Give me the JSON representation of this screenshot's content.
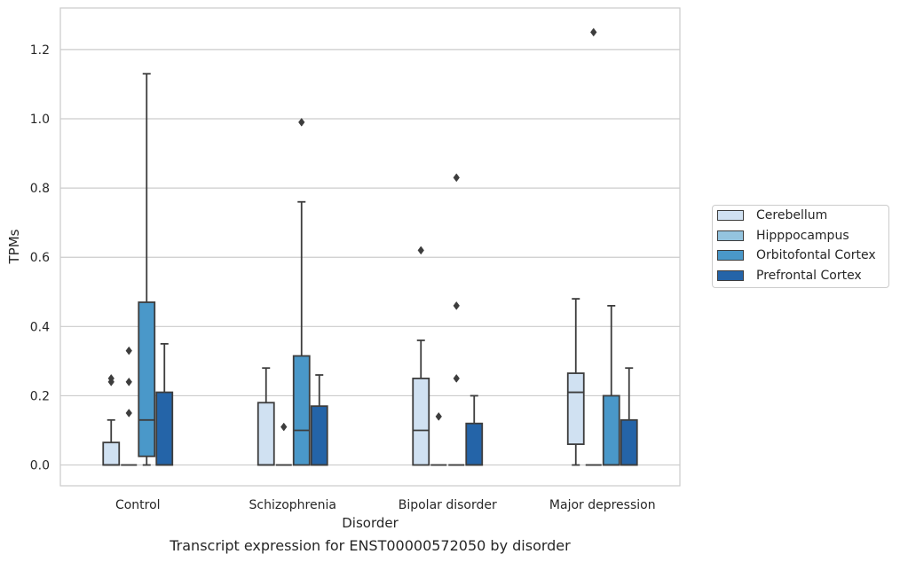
{
  "chart_data": {
    "type": "box",
    "title": "",
    "caption": "Transcript expression for ENST00000572050 by disorder",
    "xlabel": "Disorder",
    "ylabel": "TPMs",
    "ylim": [
      -0.06,
      1.32
    ],
    "yticks": [
      0.0,
      0.2,
      0.4,
      0.6,
      0.8,
      1.0,
      1.2
    ],
    "ytick_labels": [
      "0.0",
      "0.2",
      "0.4",
      "0.6",
      "0.8",
      "1.0",
      "1.2"
    ],
    "grid": "horizontal",
    "legend_position": "right",
    "categories": [
      "Control",
      "Schizophrenia",
      "Bipolar disorder",
      "Major depression"
    ],
    "series": [
      {
        "name": "Cerebellum",
        "color": "#d0e1f2",
        "boxes": [
          {
            "q1": 0.0,
            "median": 0.0,
            "q3": 0.065,
            "whisker_low": 0.0,
            "whisker_high": 0.13,
            "outliers": [
              0.24,
              0.25
            ]
          },
          {
            "q1": 0.0,
            "median": 0.0,
            "q3": 0.18,
            "whisker_low": 0.0,
            "whisker_high": 0.28,
            "outliers": []
          },
          {
            "q1": 0.0,
            "median": 0.1,
            "q3": 0.25,
            "whisker_low": 0.0,
            "whisker_high": 0.36,
            "outliers": [
              0.62
            ]
          },
          {
            "q1": 0.06,
            "median": 0.21,
            "q3": 0.265,
            "whisker_low": 0.0,
            "whisker_high": 0.48,
            "outliers": []
          }
        ]
      },
      {
        "name": "Hipppocampus",
        "color": "#94c4df",
        "boxes": [
          {
            "q1": 0.0,
            "median": 0.0,
            "q3": 0.0,
            "whisker_low": 0.0,
            "whisker_high": 0.0,
            "outliers": [
              0.15,
              0.24,
              0.33
            ]
          },
          {
            "q1": 0.0,
            "median": 0.0,
            "q3": 0.0,
            "whisker_low": 0.0,
            "whisker_high": 0.0,
            "outliers": [
              0.11
            ]
          },
          {
            "q1": 0.0,
            "median": 0.0,
            "q3": 0.0,
            "whisker_low": 0.0,
            "whisker_high": 0.0,
            "outliers": [
              0.14
            ]
          },
          {
            "q1": 0.0,
            "median": 0.0,
            "q3": 0.0,
            "whisker_low": 0.0,
            "whisker_high": 0.0,
            "outliers": [
              1.25
            ]
          }
        ]
      },
      {
        "name": "Orbitofontal Cortex",
        "color": "#4a98c9",
        "boxes": [
          {
            "q1": 0.025,
            "median": 0.13,
            "q3": 0.47,
            "whisker_low": 0.0,
            "whisker_high": 1.13,
            "outliers": []
          },
          {
            "q1": 0.0,
            "median": 0.1,
            "q3": 0.315,
            "whisker_low": 0.0,
            "whisker_high": 0.76,
            "outliers": [
              0.99
            ]
          },
          {
            "q1": 0.0,
            "median": 0.0,
            "q3": 0.0,
            "whisker_low": 0.0,
            "whisker_high": 0.0,
            "outliers": [
              0.25,
              0.46,
              0.83
            ]
          },
          {
            "q1": 0.0,
            "median": 0.0,
            "q3": 0.2,
            "whisker_low": 0.0,
            "whisker_high": 0.46,
            "outliers": []
          }
        ]
      },
      {
        "name": "Prefrontal Cortex",
        "color": "#2464a8",
        "boxes": [
          {
            "q1": 0.0,
            "median": 0.0,
            "q3": 0.21,
            "whisker_low": 0.0,
            "whisker_high": 0.35,
            "outliers": []
          },
          {
            "q1": 0.0,
            "median": 0.0,
            "q3": 0.17,
            "whisker_low": 0.0,
            "whisker_high": 0.26,
            "outliers": []
          },
          {
            "q1": 0.0,
            "median": 0.0,
            "q3": 0.12,
            "whisker_low": 0.0,
            "whisker_high": 0.2,
            "outliers": []
          },
          {
            "q1": 0.0,
            "median": 0.0,
            "q3": 0.13,
            "whisker_low": 0.0,
            "whisker_high": 0.28,
            "outliers": []
          }
        ]
      }
    ]
  }
}
